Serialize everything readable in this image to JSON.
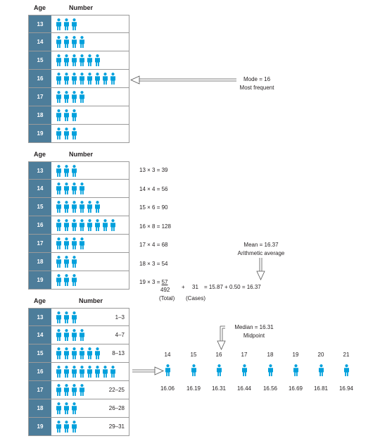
{
  "header_age": "Age",
  "header_number": "Number",
  "ages": [
    "13",
    "14",
    "15",
    "16",
    "17",
    "18",
    "19"
  ],
  "counts": [
    3,
    4,
    6,
    8,
    4,
    3,
    3
  ],
  "mode": {
    "line1": "Mode  =  16",
    "line2": "Most frequent"
  },
  "mean_calcs": [
    "13 × 3 = 39",
    "14 × 4 = 56",
    "15 × 6 = 90",
    "16 × 8 = 128",
    "17 × 4 = 68",
    "18 × 3 = 54"
  ],
  "mean_last": {
    "prefix": "19 × 3 = ",
    "underlined": "57",
    "total": "492",
    "plus": "+",
    "cases_value": "31",
    "result": "=  15.87 + 0.50 = 16.37",
    "total_label": "(Total)",
    "cases_label": "(Cases)"
  },
  "mean": {
    "line1": "Mean  =  16.37",
    "line2": "Arithmetic average"
  },
  "ranges": [
    "1–3",
    "4–7",
    "8–13",
    "",
    "22–25",
    "26–28",
    "29–31"
  ],
  "median": {
    "line1": "Median  =  16.31",
    "line2": "Midpoint"
  },
  "midpoint_ages": [
    "14",
    "15",
    "16",
    "17",
    "18",
    "19",
    "20",
    "21"
  ],
  "midpoint_values": [
    "16.06",
    "16.19",
    "16.31",
    "16.44",
    "16.56",
    "16.69",
    "16.81",
    "16.94"
  ],
  "colors": {
    "figure": "#00a0dc",
    "age_cell": "#4d7d9a",
    "border": "#9a9a9a"
  }
}
